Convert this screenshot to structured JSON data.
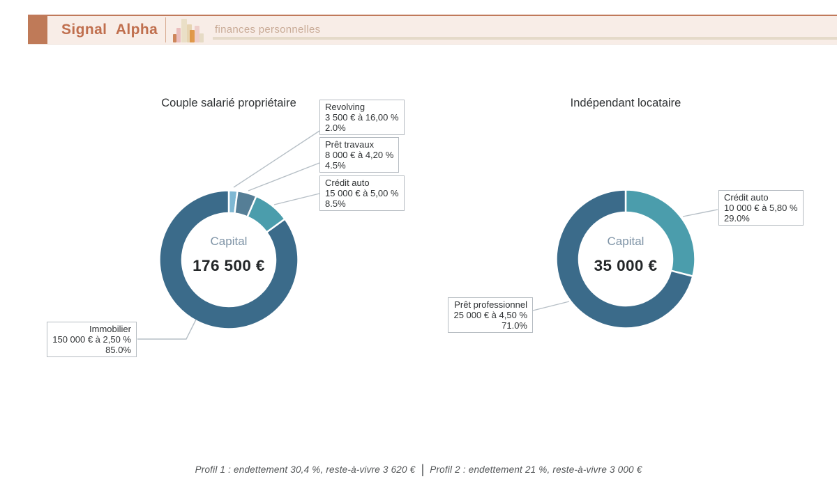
{
  "header": {
    "brand": "Signal Alpha",
    "tagline": "finances personnelles",
    "accent_color": "#bf7a58",
    "brand_text_color": "#c06f4e",
    "band_bg": "#f8ede7",
    "tagline_color": "#c9ab97",
    "rule_color": "#e5dac9"
  },
  "chart_data": [
    {
      "type": "pie",
      "variant": "donut",
      "title": "Couple salarié propriétaire",
      "center_label": "Capital",
      "center_value": "176 500 €",
      "legend_position": "outside-callouts",
      "start_angle": "top-clockwise",
      "segments": [
        {
          "name": "Revolving",
          "detail": "3 500 € à 16,00 %",
          "pct": "2.0%",
          "value": 2.0,
          "color": "#7fb8d3"
        },
        {
          "name": "Prêt travaux",
          "detail": "8 000 € à 4,20 %",
          "pct": "4.5%",
          "value": 4.5,
          "color": "#557e96"
        },
        {
          "name": "Crédit auto",
          "detail": "15 000 € à 5,00 %",
          "pct": "8.5%",
          "value": 8.5,
          "color": "#4b9dac"
        },
        {
          "name": "Immobilier",
          "detail": "150 000 € à 2,50 %",
          "pct": "85.0%",
          "value": 85.0,
          "color": "#3b6b8a"
        }
      ]
    },
    {
      "type": "pie",
      "variant": "donut",
      "title": "Indépendant locataire",
      "center_label": "Capital",
      "center_value": "35 000 €",
      "legend_position": "outside-callouts",
      "start_angle": "top-clockwise",
      "segments": [
        {
          "name": "Crédit auto",
          "detail": "10 000 € à 5,80 %",
          "pct": "29.0%",
          "value": 29.0,
          "color": "#4b9dac"
        },
        {
          "name": "Prêt professionnel",
          "detail": "25 000 € à 4,50 %",
          "pct": "71.0%",
          "value": 71.0,
          "color": "#3b6b8a"
        }
      ]
    }
  ],
  "footer": {
    "profil1": "Profil 1 : endettement 30,4 %, reste-à-vivre 3 620 €",
    "separator": "|",
    "profil2": "Profil 2 : endettement 21 %, reste-à-vivre 3 000 €"
  }
}
